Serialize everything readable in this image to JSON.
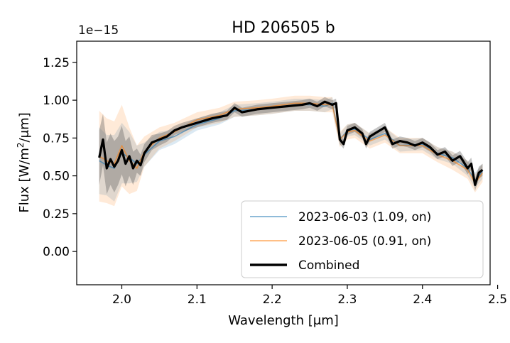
{
  "chart_data": {
    "type": "line",
    "title": "HD 206505 b",
    "xlabel": "Wavelength [μm]",
    "ylabel_prefix": "Flux [W/m",
    "ylabel_sup": "2",
    "ylabel_suffix": "/μm]",
    "offset_text": "1e−15",
    "xlim": [
      1.94,
      2.49
    ],
    "ylim": [
      -0.22,
      1.39
    ],
    "y_scale_factor": 1e-15,
    "xticks": [
      2.0,
      2.1,
      2.2,
      2.3,
      2.4,
      2.5
    ],
    "xtick_labels": [
      "2.0",
      "2.1",
      "2.2",
      "2.3",
      "2.4",
      "2.5"
    ],
    "yticks": [
      0.0,
      0.25,
      0.5,
      0.75,
      1.0,
      1.25
    ],
    "ytick_labels": [
      "0.00",
      "0.25",
      "0.50",
      "0.75",
      "1.00",
      "1.25"
    ],
    "grid": false,
    "legend_position": "lower-right",
    "series": [
      {
        "name": "2023-06-03 (1.09, on)",
        "color": "#1f77b4",
        "x": [
          1.97,
          1.98,
          1.99,
          2.0,
          2.01,
          2.02,
          2.03,
          2.05,
          2.07,
          2.1,
          2.13,
          2.15,
          2.18,
          2.2,
          2.23,
          2.25,
          2.27,
          2.28,
          2.29,
          2.3,
          2.31,
          2.33,
          2.35,
          2.37,
          2.4,
          2.42,
          2.44,
          2.46,
          2.47,
          2.48
        ],
        "y": [
          0.6,
          0.57,
          0.55,
          0.65,
          0.62,
          0.58,
          0.64,
          0.73,
          0.76,
          0.84,
          0.88,
          0.93,
          0.94,
          0.95,
          0.97,
          0.97,
          0.96,
          0.98,
          0.74,
          0.8,
          0.81,
          0.74,
          0.78,
          0.7,
          0.71,
          0.65,
          0.62,
          0.55,
          0.47,
          0.53
        ],
        "err": [
          0.22,
          0.2,
          0.22,
          0.2,
          0.17,
          0.12,
          0.08,
          0.06,
          0.05,
          0.04,
          0.04,
          0.04,
          0.04,
          0.04,
          0.04,
          0.04,
          0.04,
          0.04,
          0.04,
          0.04,
          0.04,
          0.04,
          0.04,
          0.04,
          0.04,
          0.04,
          0.04,
          0.05,
          0.05,
          0.05
        ]
      },
      {
        "name": "2023-06-05 (0.91, on)",
        "color": "#ff7f0e",
        "x": [
          1.97,
          1.98,
          1.99,
          2.0,
          2.01,
          2.02,
          2.03,
          2.05,
          2.07,
          2.1,
          2.13,
          2.15,
          2.18,
          2.2,
          2.23,
          2.25,
          2.27,
          2.28,
          2.29,
          2.3,
          2.31,
          2.33,
          2.35,
          2.37,
          2.4,
          2.42,
          2.44,
          2.46,
          2.47,
          2.48
        ],
        "y": [
          0.63,
          0.6,
          0.58,
          0.7,
          0.6,
          0.55,
          0.66,
          0.75,
          0.79,
          0.87,
          0.9,
          0.94,
          0.95,
          0.96,
          0.98,
          0.98,
          0.97,
          0.97,
          0.74,
          0.79,
          0.8,
          0.73,
          0.77,
          0.7,
          0.7,
          0.64,
          0.6,
          0.54,
          0.45,
          0.52
        ],
        "err": [
          0.3,
          0.28,
          0.28,
          0.27,
          0.22,
          0.15,
          0.1,
          0.07,
          0.06,
          0.05,
          0.05,
          0.05,
          0.05,
          0.05,
          0.05,
          0.05,
          0.05,
          0.05,
          0.05,
          0.05,
          0.05,
          0.05,
          0.05,
          0.05,
          0.05,
          0.05,
          0.06,
          0.06,
          0.06,
          0.06
        ]
      },
      {
        "name": "Combined",
        "color": "#000000",
        "x": [
          1.97,
          1.975,
          1.98,
          1.985,
          1.99,
          1.995,
          2.0,
          2.005,
          2.01,
          2.015,
          2.02,
          2.025,
          2.03,
          2.04,
          2.05,
          2.06,
          2.07,
          2.08,
          2.1,
          2.12,
          2.14,
          2.15,
          2.16,
          2.18,
          2.2,
          2.22,
          2.24,
          2.25,
          2.26,
          2.27,
          2.28,
          2.285,
          2.29,
          2.295,
          2.3,
          2.31,
          2.32,
          2.325,
          2.33,
          2.34,
          2.35,
          2.36,
          2.37,
          2.38,
          2.39,
          2.4,
          2.41,
          2.42,
          2.43,
          2.44,
          2.45,
          2.46,
          2.465,
          2.47,
          2.475,
          2.48
        ],
        "y": [
          0.62,
          0.74,
          0.55,
          0.61,
          0.56,
          0.6,
          0.67,
          0.58,
          0.63,
          0.55,
          0.6,
          0.57,
          0.65,
          0.72,
          0.74,
          0.76,
          0.8,
          0.82,
          0.85,
          0.88,
          0.9,
          0.95,
          0.92,
          0.94,
          0.95,
          0.96,
          0.97,
          0.98,
          0.96,
          0.99,
          0.97,
          0.98,
          0.74,
          0.71,
          0.8,
          0.82,
          0.78,
          0.71,
          0.76,
          0.79,
          0.82,
          0.71,
          0.73,
          0.72,
          0.7,
          0.72,
          0.69,
          0.64,
          0.66,
          0.6,
          0.63,
          0.55,
          0.58,
          0.44,
          0.52,
          0.54
        ],
        "err": [
          0.18,
          0.17,
          0.17,
          0.17,
          0.17,
          0.16,
          0.16,
          0.15,
          0.13,
          0.11,
          0.08,
          0.07,
          0.06,
          0.05,
          0.04,
          0.035,
          0.03,
          0.03,
          0.03,
          0.03,
          0.03,
          0.03,
          0.03,
          0.03,
          0.03,
          0.03,
          0.03,
          0.03,
          0.03,
          0.03,
          0.03,
          0.03,
          0.03,
          0.03,
          0.03,
          0.03,
          0.03,
          0.03,
          0.03,
          0.03,
          0.03,
          0.03,
          0.03,
          0.03,
          0.03,
          0.03,
          0.03,
          0.03,
          0.03,
          0.035,
          0.035,
          0.04,
          0.04,
          0.04,
          0.04,
          0.04
        ]
      }
    ]
  }
}
